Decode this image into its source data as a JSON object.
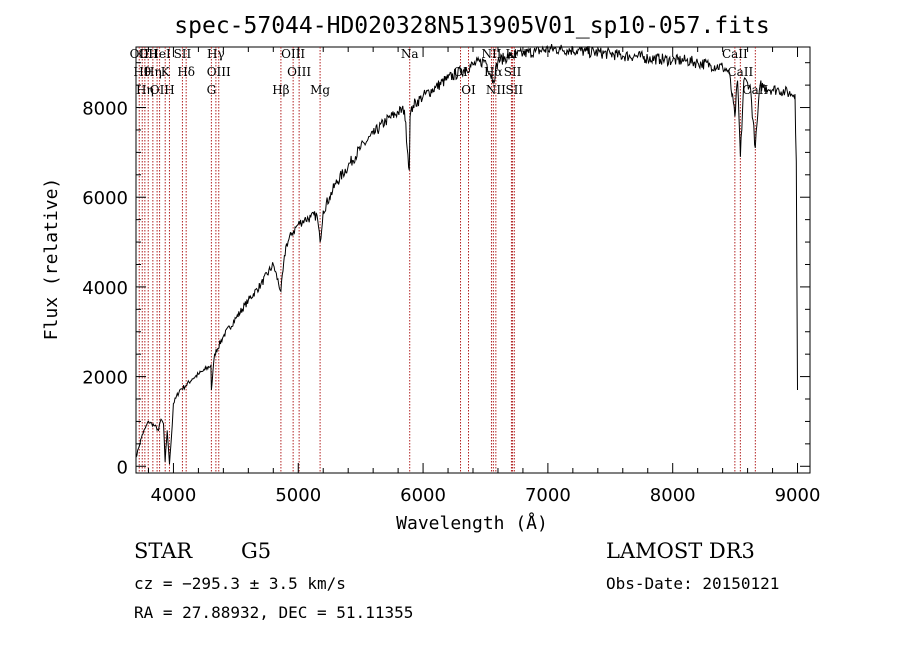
{
  "chart_data": {
    "type": "line",
    "title": "spec-57044-HD020328N513905V01_sp10-057.fits",
    "xlabel": "Wavelength (Å)",
    "ylabel": "Flux (relative)",
    "xlim": [
      3700,
      9100
    ],
    "ylim": [
      -150,
      9350
    ],
    "x_ticks": [
      4000,
      5000,
      6000,
      7000,
      8000,
      9000
    ],
    "y_ticks": [
      0,
      2000,
      4000,
      6000,
      8000
    ],
    "grid": false,
    "legend": "none",
    "series": [
      {
        "name": "flux",
        "x": [
          3700,
          3720,
          3750,
          3800,
          3850,
          3880,
          3900,
          3920,
          3933,
          3950,
          3968,
          3990,
          4000,
          4050,
          4100,
          4150,
          4200,
          4250,
          4300,
          4304,
          4330,
          4400,
          4500,
          4600,
          4700,
          4800,
          4861,
          4900,
          4950,
          5000,
          5050,
          5100,
          5150,
          5175,
          5200,
          5250,
          5300,
          5400,
          5500,
          5600,
          5700,
          5800,
          5850,
          5890,
          5896,
          5920,
          6000,
          6100,
          6200,
          6300,
          6400,
          6500,
          6563,
          6600,
          6700,
          6800,
          6900,
          7000,
          7100,
          7200,
          7300,
          7400,
          7500,
          7600,
          7700,
          7800,
          7900,
          8000,
          8100,
          8200,
          8300,
          8400,
          8450,
          8498,
          8520,
          8542,
          8570,
          8600,
          8620,
          8662,
          8700,
          8750,
          8800,
          8850,
          8900,
          8950,
          8980,
          8990,
          9000
        ],
        "values": [
          200,
          400,
          700,
          1000,
          900,
          800,
          1050,
          950,
          100,
          800,
          50,
          900,
          1400,
          1700,
          1800,
          1950,
          2050,
          2150,
          2250,
          1700,
          2500,
          2900,
          3300,
          3700,
          4050,
          4500,
          3900,
          4900,
          5200,
          5400,
          5500,
          5550,
          5600,
          5000,
          5700,
          6000,
          6300,
          6700,
          7100,
          7400,
          7700,
          7900,
          7950,
          6600,
          7800,
          8050,
          8250,
          8450,
          8650,
          8800,
          8950,
          9050,
          8600,
          9050,
          9150,
          9200,
          9250,
          9300,
          9300,
          9280,
          9250,
          9220,
          9200,
          9150,
          9150,
          9100,
          9080,
          9050,
          9050,
          9000,
          8950,
          8900,
          8800,
          7800,
          8600,
          6900,
          8600,
          8550,
          8500,
          7100,
          8500,
          8450,
          8400,
          8400,
          8350,
          8300,
          8300,
          6800,
          1700
        ]
      }
    ],
    "spectral_lines": [
      {
        "wavelength": 3726,
        "label": "OII"
      },
      {
        "wavelength": 3750,
        "label": "Hθ"
      },
      {
        "wavelength": 3771,
        "label": "Hη"
      },
      {
        "wavelength": 3798,
        "label": "OII"
      },
      {
        "wavelength": 3835,
        "label": "Hη"
      },
      {
        "wavelength": 3869,
        "label": "OI"
      },
      {
        "wavelength": 3889,
        "label": "HeI"
      },
      {
        "wavelength": 3934,
        "label": "K"
      },
      {
        "wavelength": 3968,
        "label": "H"
      },
      {
        "wavelength": 4072,
        "label": "SII"
      },
      {
        "wavelength": 4102,
        "label": "Hδ"
      },
      {
        "wavelength": 4304,
        "label": "G"
      },
      {
        "wavelength": 4340,
        "label": "Hγ"
      },
      {
        "wavelength": 4363,
        "label": "OIII"
      },
      {
        "wavelength": 4861,
        "label": "Hβ"
      },
      {
        "wavelength": 4959,
        "label": "OIII"
      },
      {
        "wavelength": 5007,
        "label": "OIII"
      },
      {
        "wavelength": 5175,
        "label": "Mg"
      },
      {
        "wavelength": 5893,
        "label": "Na"
      },
      {
        "wavelength": 6300,
        "label": "OI"
      },
      {
        "wavelength": 6364,
        "label": "OI"
      },
      {
        "wavelength": 6548,
        "label": "NII"
      },
      {
        "wavelength": 6563,
        "label": "Hα"
      },
      {
        "wavelength": 6583,
        "label": "NII"
      },
      {
        "wavelength": 6708,
        "label": "Li"
      },
      {
        "wavelength": 6717,
        "label": "SII"
      },
      {
        "wavelength": 6731,
        "label": "SII"
      },
      {
        "wavelength": 8498,
        "label": "CaII"
      },
      {
        "wavelength": 8542,
        "label": "CaII"
      },
      {
        "wavelength": 8662,
        "label": "CaII"
      }
    ]
  },
  "info": {
    "object_class": "STAR",
    "subclass": "G5",
    "survey": "LAMOST DR3",
    "cz": "cz = −295.3 ± 3.5 km/s",
    "obs_date": "Obs-Date: 20150121",
    "coords": "RA =  27.88932, DEC =  51.11355"
  },
  "colors": {
    "spectrum": "#000000",
    "line_markers": "#b22222",
    "axes": "#000000",
    "background": "#ffffff"
  }
}
